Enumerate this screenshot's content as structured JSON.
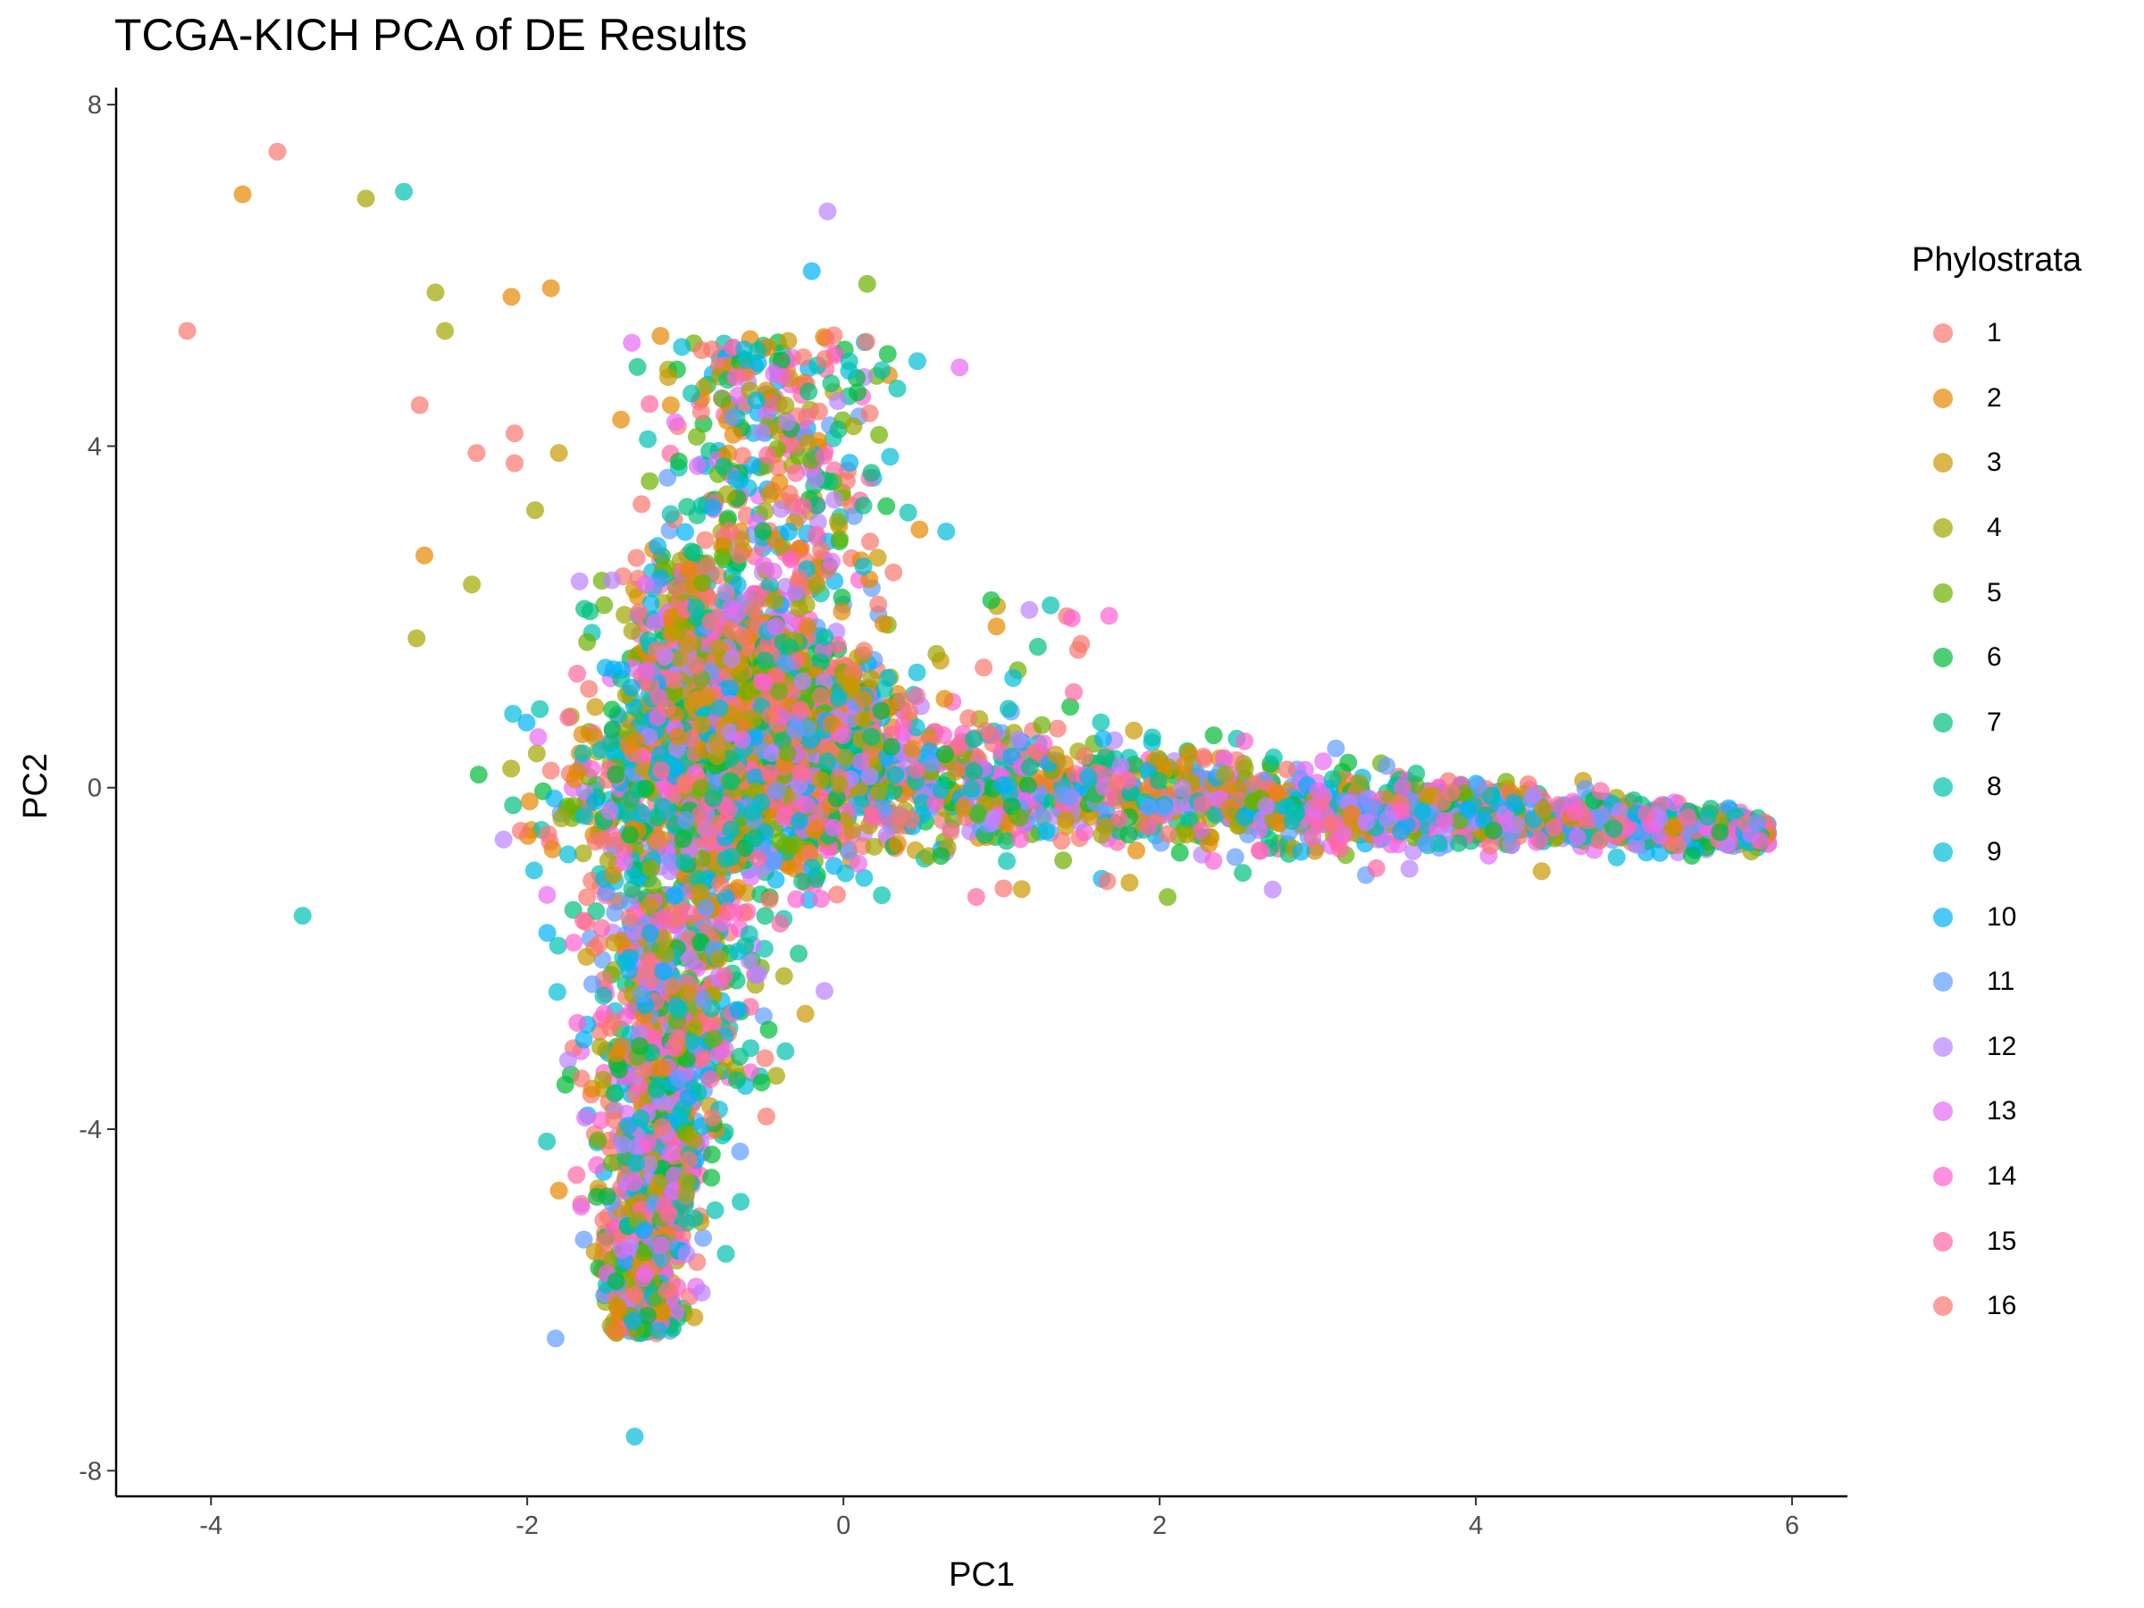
{
  "chart_data": {
    "type": "scatter",
    "title": "TCGA-KICH PCA of DE Results",
    "xlabel": "PC1",
    "ylabel": "PC2",
    "xlim": [
      -4.6,
      6.35
    ],
    "ylim": [
      -8.3,
      8.2
    ],
    "x_ticks": [
      -4,
      -2,
      0,
      2,
      4,
      6
    ],
    "y_ticks": [
      -8,
      -4,
      0,
      4,
      8
    ],
    "x_tick_labels": [
      "-4",
      "-2",
      "0",
      "2",
      "4",
      "6"
    ],
    "y_tick_labels": [
      "-8",
      "-4",
      "0",
      "4",
      "8"
    ],
    "grid": false,
    "legend": {
      "title": "Phylostrata",
      "placement": "right",
      "entries": [
        "1",
        "2",
        "3",
        "4",
        "5",
        "6",
        "7",
        "8",
        "9",
        "10",
        "11",
        "12",
        "13",
        "14",
        "15",
        "16"
      ]
    },
    "series_colors": [
      "#F8766D",
      "#E58700",
      "#C99800",
      "#A3A500",
      "#6BB100",
      "#00BA38",
      "#00BF7D",
      "#00C0AF",
      "#00BCD8",
      "#00B0F6",
      "#619CFF",
      "#B983FF",
      "#E76BF3",
      "#FD61D1",
      "#FF67A4",
      "#F8766D"
    ],
    "marker_opacity": 0.7,
    "outliers": [
      {
        "phylostratum": 1,
        "x": -4.15,
        "y": 5.35
      },
      {
        "phylostratum": 1,
        "x": -3.58,
        "y": 7.45
      },
      {
        "phylostratum": 2,
        "x": -3.8,
        "y": 6.95
      },
      {
        "phylostratum": 4,
        "x": -3.02,
        "y": 6.9
      },
      {
        "phylostratum": 8,
        "x": -2.78,
        "y": 6.98
      },
      {
        "phylostratum": 4,
        "x": -2.58,
        "y": 5.8
      },
      {
        "phylostratum": 4,
        "x": -2.52,
        "y": 5.35
      },
      {
        "phylostratum": 2,
        "x": -2.1,
        "y": 5.75
      },
      {
        "phylostratum": 2,
        "x": -1.85,
        "y": 5.85
      },
      {
        "phylostratum": 1,
        "x": -2.68,
        "y": 4.48
      },
      {
        "phylostratum": 1,
        "x": -2.32,
        "y": 3.92
      },
      {
        "phylostratum": 1,
        "x": -2.08,
        "y": 4.15
      },
      {
        "phylostratum": 1,
        "x": -2.08,
        "y": 3.8
      },
      {
        "phylostratum": 3,
        "x": -1.8,
        "y": 3.92
      },
      {
        "phylostratum": 4,
        "x": -1.95,
        "y": 3.25
      },
      {
        "phylostratum": 2,
        "x": -2.65,
        "y": 2.72
      },
      {
        "phylostratum": 4,
        "x": -2.35,
        "y": 2.38
      },
      {
        "phylostratum": 4,
        "x": -2.7,
        "y": 1.75
      },
      {
        "phylostratum": 8,
        "x": -1.92,
        "y": 0.92
      },
      {
        "phylostratum": 1,
        "x": -1.85,
        "y": 0.2
      },
      {
        "phylostratum": 2,
        "x": -1.7,
        "y": 0.1
      },
      {
        "phylostratum": 8,
        "x": -3.42,
        "y": -1.5
      },
      {
        "phylostratum": 4,
        "x": -1.52,
        "y": -3.42
      },
      {
        "phylostratum": 2,
        "x": -1.8,
        "y": -4.72
      },
      {
        "phylostratum": 11,
        "x": -1.82,
        "y": -6.45
      },
      {
        "phylostratum": 9,
        "x": -1.32,
        "y": -7.6
      },
      {
        "phylostratum": 12,
        "x": -0.1,
        "y": 6.75
      },
      {
        "phylostratum": 10,
        "x": -0.2,
        "y": 6.05
      },
      {
        "phylostratum": 5,
        "x": 0.15,
        "y": 5.9
      },
      {
        "phylostratum": 6,
        "x": 0.28,
        "y": 5.08
      },
      {
        "phylostratum": 9,
        "x": 0.65,
        "y": 3.0
      },
      {
        "phylostratum": 7,
        "x": 1.23,
        "y": 1.65
      },
      {
        "phylostratum": 12,
        "x": 3.58,
        "y": -0.95
      },
      {
        "phylostratum": 5,
        "x": 2.05,
        "y": -1.28
      },
      {
        "phylostratum": 12,
        "x": -0.12,
        "y": -2.38
      },
      {
        "phylostratum": 8,
        "x": -0.65,
        "y": -4.85
      }
    ]
  }
}
